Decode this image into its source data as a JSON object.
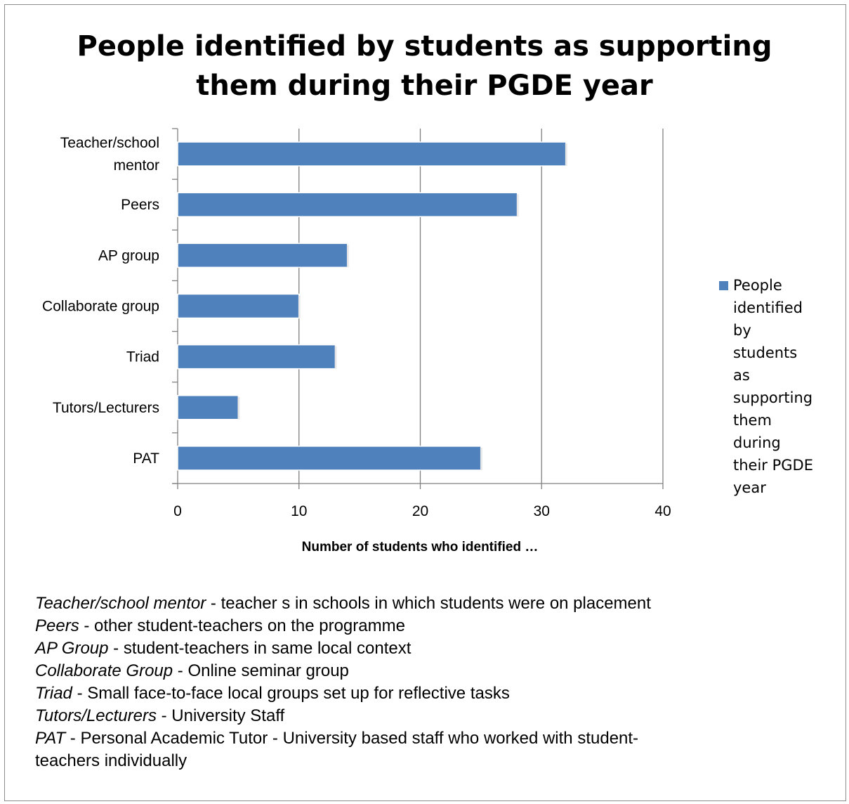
{
  "chart_data": {
    "type": "bar",
    "orientation": "horizontal",
    "title": "People identified by students as supporting them during their PGDE year",
    "title_lines": [
      "People identified by students as supporting",
      "them during their PGDE year"
    ],
    "categories": [
      "Teacher/school mentor",
      "Peers",
      "AP group",
      "Collaborate group",
      "Triad",
      "Tutors/Lecturers",
      "PAT"
    ],
    "category_lines": [
      [
        "Teacher/school",
        "mentor"
      ],
      [
        "Peers"
      ],
      [
        "AP group"
      ],
      [
        "Collaborate group"
      ],
      [
        "Triad"
      ],
      [
        "Tutors/Lecturers"
      ],
      [
        "PAT"
      ]
    ],
    "series": [
      {
        "name": "People identified by students as supporting them during their PGDE year",
        "values": [
          32,
          28,
          14,
          10,
          13,
          5,
          25
        ]
      }
    ],
    "xlabel": "Number of students who identified …",
    "ylabel": "",
    "xlim": [
      0,
      40
    ],
    "xticks": [
      0,
      10,
      20,
      30,
      40
    ],
    "grid": "vertical",
    "legend": "right",
    "color": "#4f81bd"
  },
  "notes": [
    {
      "term": "Teacher/school mentor",
      "desc": " - teacher s in schools in which students were on placement"
    },
    {
      "term": "Peers",
      "desc": " - other student-teachers on the programme"
    },
    {
      "term": "AP Group",
      "desc": " - student-teachers in same local context"
    },
    {
      "term": "Collaborate Group",
      "desc": " - Online seminar group"
    },
    {
      "term": "Triad",
      "desc": " - Small face-to-face local groups set up for reflective tasks"
    },
    {
      "term": "Tutors/Lecturers",
      "desc": " - University Staff"
    },
    {
      "term": "PAT",
      "desc": " - Personal  Academic Tutor - University based staff who worked with student-"
    },
    {
      "term": "",
      "desc": "teachers individually"
    }
  ]
}
